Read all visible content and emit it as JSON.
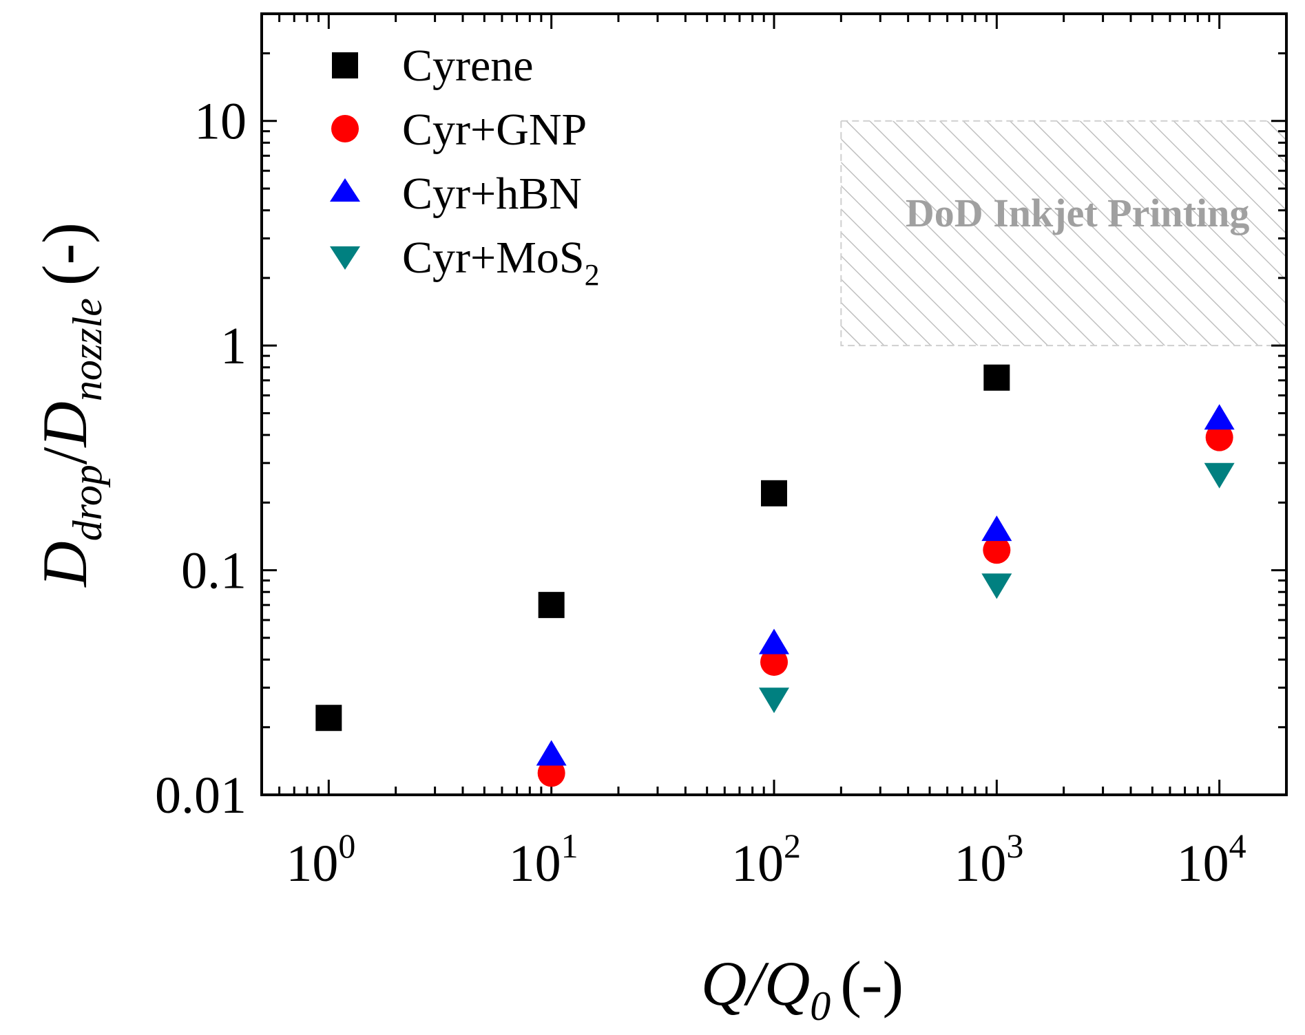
{
  "chart_data": {
    "type": "scatter",
    "xscale": "log",
    "yscale": "log",
    "xlim": [
      0.5,
      20000
    ],
    "ylim": [
      0.01,
      30
    ],
    "x_ticks": [
      {
        "value": 1,
        "base": "10",
        "exp": "0"
      },
      {
        "value": 10,
        "base": "10",
        "exp": "1"
      },
      {
        "value": 100,
        "base": "10",
        "exp": "2"
      },
      {
        "value": 1000,
        "base": "10",
        "exp": "3"
      },
      {
        "value": 10000,
        "base": "10",
        "exp": "4"
      }
    ],
    "y_ticks": [
      {
        "value": 0.01,
        "label": "0.01"
      },
      {
        "value": 0.1,
        "label": "0.1"
      },
      {
        "value": 1,
        "label": "1"
      },
      {
        "value": 10,
        "label": "10"
      }
    ],
    "xlabel": {
      "main": "Q/Q",
      "sub": "0",
      "unit": "(-)"
    },
    "ylabel": {
      "d1": "D",
      "sub1": "drop",
      "slash": "/",
      "d2": "D",
      "sub2": "nozzle",
      "unit": "(-)"
    },
    "legend_position": "top-left",
    "series": [
      {
        "name": "Cyrene",
        "marker": "square",
        "color": "#000000",
        "points": [
          {
            "x": 1,
            "y": 0.022
          },
          {
            "x": 10,
            "y": 0.07
          },
          {
            "x": 100,
            "y": 0.22
          },
          {
            "x": 1000,
            "y": 0.72
          }
        ]
      },
      {
        "name": "Cyr+GNP",
        "marker": "circle",
        "color": "#ff0000",
        "points": [
          {
            "x": 10,
            "y": 0.0125
          },
          {
            "x": 100,
            "y": 0.039
          },
          {
            "x": 1000,
            "y": 0.123
          },
          {
            "x": 10000,
            "y": 0.39
          }
        ]
      },
      {
        "name": "Cyr+hBN",
        "marker": "triangle-up",
        "color": "#0000ff",
        "points": [
          {
            "x": 10,
            "y": 0.015
          },
          {
            "x": 100,
            "y": 0.047
          },
          {
            "x": 1000,
            "y": 0.15
          },
          {
            "x": 10000,
            "y": 0.47
          }
        ]
      },
      {
        "name": "Cyr+MoS",
        "name_sub": "2",
        "marker": "triangle-down",
        "color": "#008080",
        "points": [
          {
            "x": 100,
            "y": 0.027
          },
          {
            "x": 1000,
            "y": 0.087
          },
          {
            "x": 10000,
            "y": 0.27
          }
        ]
      }
    ],
    "region": {
      "label": "DoD Inkjet Printing",
      "x_range": [
        200,
        20000
      ],
      "y_range": [
        1,
        10
      ],
      "fill_pattern": "diagonal-hatch",
      "color": "#b0b0b0",
      "label_color": "#a0a0a0"
    }
  }
}
